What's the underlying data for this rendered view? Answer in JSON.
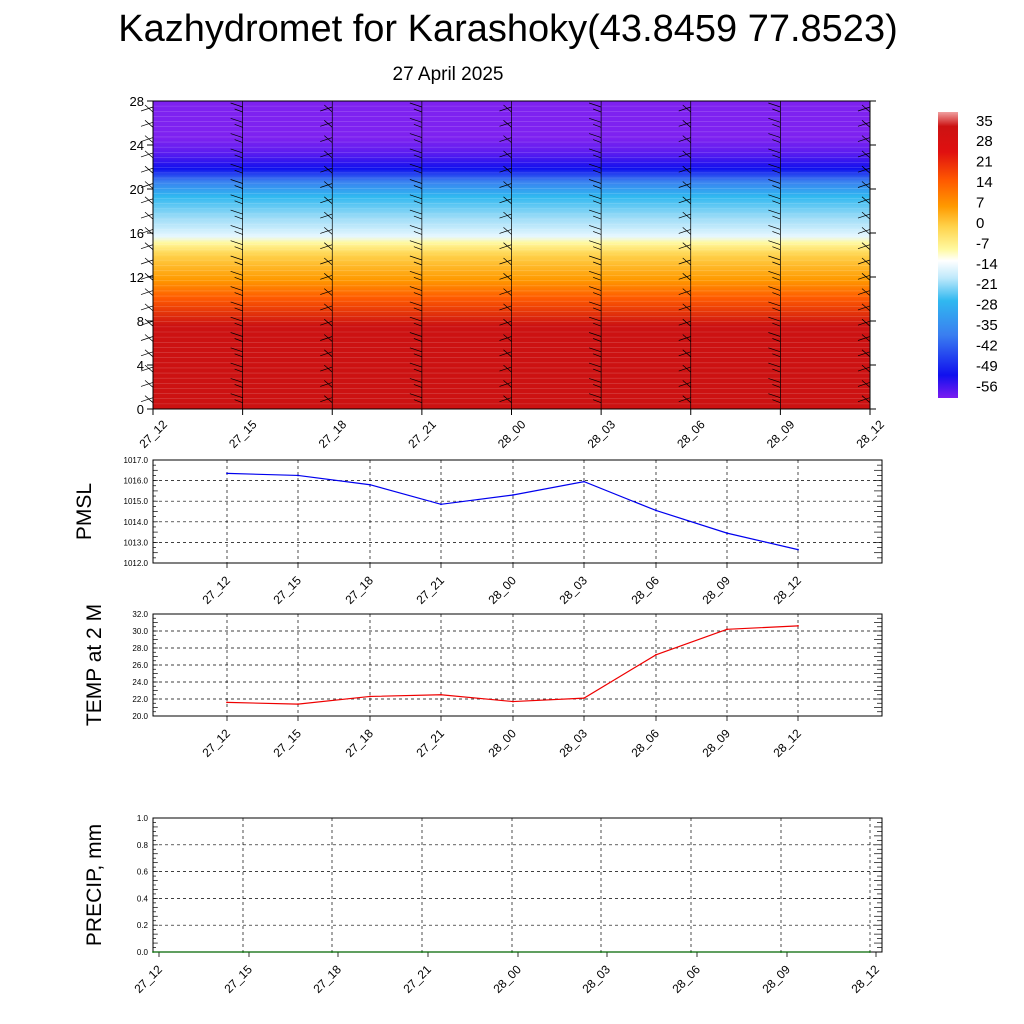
{
  "title": "Kazhydromet for Karashoky(43.8459 77.8523)",
  "subtitle": "27 April 2025",
  "chart_data": [
    {
      "type": "heatmap",
      "description": "temperature contours with wind barbs",
      "x_ticks": [
        "27_12",
        "27_15",
        "27_18",
        "27_21",
        "28_00",
        "28_03",
        "28_06",
        "28_09",
        "28_12"
      ],
      "y_ticks": [
        "0",
        "4",
        "8",
        "12",
        "16",
        "20",
        "24",
        "28"
      ],
      "ylim": [
        0,
        28
      ],
      "colorbar_labels": [
        "35",
        "28",
        "21",
        "14",
        "7",
        "0",
        "-7",
        "-14",
        "-21",
        "-28",
        "-35",
        "-42",
        "-49",
        "-56"
      ],
      "colorbar_range": [
        -60,
        38
      ],
      "colors": {
        "hot": "#cc1212",
        "orange": "#ff9a00",
        "yellow": "#fff9a0",
        "cyan": "#30b8f0",
        "blue": "#1010ee",
        "violet": "#7e22f0"
      }
    },
    {
      "type": "line",
      "ylabel": "PMSL",
      "x": [
        "27_12",
        "27_15",
        "27_18",
        "27_21",
        "28_00",
        "28_03",
        "28_06",
        "28_09",
        "28_12"
      ],
      "values": [
        1016.35,
        1016.25,
        1015.8,
        1014.85,
        1015.3,
        1015.95,
        1014.55,
        1013.45,
        1012.65
      ],
      "y_ticks": [
        "1012.0",
        "1013.0",
        "1014.0",
        "1015.0",
        "1016.0",
        "1017.0"
      ],
      "ylim": [
        1012,
        1017
      ],
      "color": "#0000ee",
      "grid": true
    },
    {
      "type": "line",
      "ylabel": "TEMP at 2 M",
      "x": [
        "27_12",
        "27_15",
        "27_18",
        "27_21",
        "28_00",
        "28_03",
        "28_06",
        "28_09",
        "28_12"
      ],
      "values": [
        21.6,
        21.4,
        22.3,
        22.5,
        21.7,
        22.1,
        27.2,
        30.2,
        30.6
      ],
      "y_ticks": [
        "20.0",
        "22.0",
        "24.0",
        "26.0",
        "28.0",
        "30.0",
        "32.0"
      ],
      "ylim": [
        20,
        32
      ],
      "color": "#ee0000",
      "grid": true
    },
    {
      "type": "line",
      "ylabel": "PRECIP, mm",
      "x": [
        "27_12",
        "27_15",
        "27_18",
        "27_21",
        "28_00",
        "28_03",
        "28_06",
        "28_09",
        "28_12"
      ],
      "values": [
        0,
        0,
        0,
        0,
        0,
        0,
        0,
        0,
        0
      ],
      "y_ticks": [
        "0.0",
        "0.2",
        "0.4",
        "0.6",
        "0.8",
        "1.0"
      ],
      "ylim": [
        0,
        1
      ],
      "color": "#006600",
      "grid": true
    }
  ]
}
